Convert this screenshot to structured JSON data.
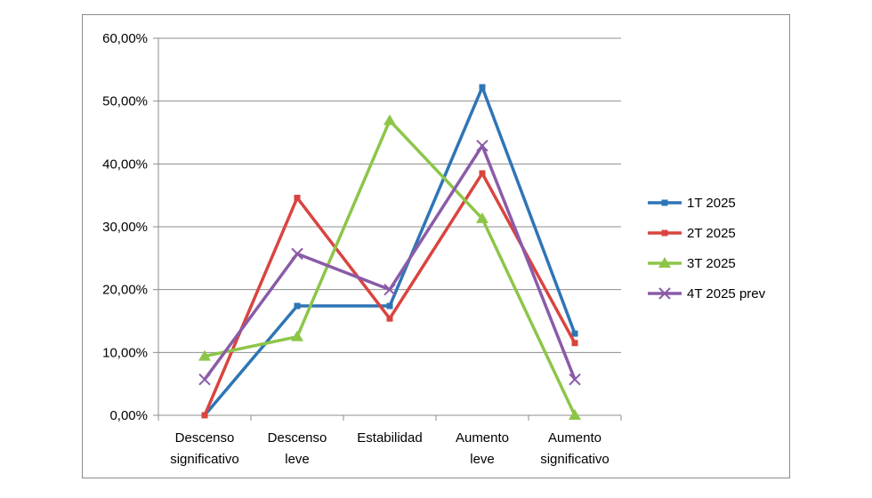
{
  "chart_data": {
    "type": "line",
    "categories": [
      [
        "Descenso",
        "significativo"
      ],
      [
        "Descenso",
        "leve"
      ],
      [
        "Estabilidad"
      ],
      [
        "Aumento",
        "leve"
      ],
      [
        "Aumento",
        "significativo"
      ]
    ],
    "ylim": [
      0,
      60
    ],
    "yticks": [
      "0,00%",
      "10,00%",
      "20,00%",
      "30,00%",
      "40,00%",
      "50,00%",
      "60,00%"
    ],
    "grid": true,
    "legend_position": "right",
    "series": [
      {
        "name": "1T 2025",
        "color": "#2e75b6",
        "marker": "square",
        "values": [
          0,
          17.4,
          17.4,
          52.2,
          13.0
        ]
      },
      {
        "name": "2T 2025",
        "color": "#d9443f",
        "marker": "square",
        "values": [
          0,
          34.6,
          15.4,
          38.5,
          11.5
        ]
      },
      {
        "name": "3T 2025",
        "color": "#8dc549",
        "marker": "triangle",
        "values": [
          9.4,
          12.5,
          46.9,
          31.3,
          0
        ]
      },
      {
        "name": "4T 2025 prev",
        "color": "#8a5ba8",
        "marker": "x",
        "values": [
          5.7,
          25.7,
          20.0,
          42.9,
          5.7
        ]
      }
    ]
  }
}
